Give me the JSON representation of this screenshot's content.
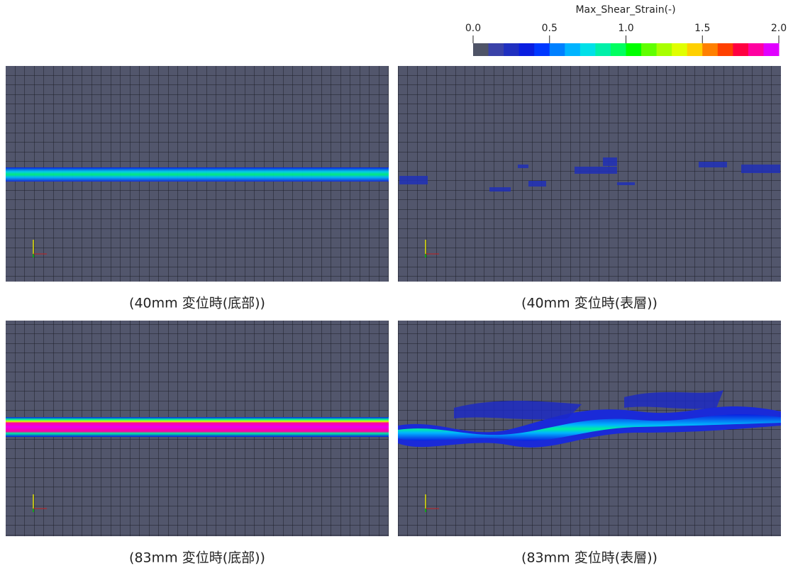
{
  "colorbar": {
    "title": "Max_Shear_Strain(-)",
    "range": [
      0,
      2
    ],
    "ticks": [
      {
        "value": 0,
        "label": "0.0"
      },
      {
        "value": 0.5,
        "label": "0.5"
      },
      {
        "value": 1,
        "label": "1.0"
      },
      {
        "value": 1.5,
        "label": "1.5"
      },
      {
        "value": 2,
        "label": "2.0"
      }
    ],
    "colors": [
      "#4f5467",
      "#3a42a8",
      "#2030c0",
      "#0a1ee0",
      "#0038ff",
      "#0080ff",
      "#00b4ff",
      "#00e0e8",
      "#00f0a8",
      "#00ff60",
      "#00ff00",
      "#60ff00",
      "#a8ff00",
      "#e0ff00",
      "#ffd000",
      "#ff8000",
      "#ff4000",
      "#ff0040",
      "#ff00a0",
      "#e000ff"
    ]
  },
  "panels": [
    {
      "caption": "(40mm 変位時(底部))"
    },
    {
      "caption": "(40mm 変位時(表層))"
    },
    {
      "caption": "(83mm 変位時(底部))"
    },
    {
      "caption": "(83mm 変位時(表層))"
    }
  ]
}
